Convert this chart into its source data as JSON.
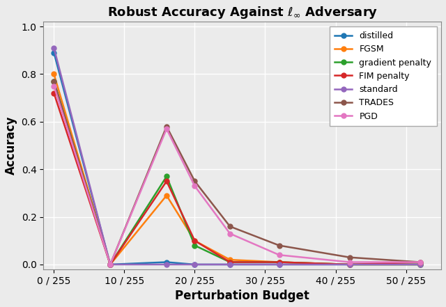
{
  "title": "Robust Accuracy Against $\\ell_\\infty$ Adversary",
  "xlabel": "Perturbation Budget",
  "ylabel": "Accuracy",
  "xlim": [
    -1.5,
    55
  ],
  "ylim": [
    -0.02,
    1.02
  ],
  "series": [
    {
      "label": "distilled",
      "color": "#1f77b4",
      "x": [
        0,
        8,
        16,
        20,
        25,
        32,
        42,
        52
      ],
      "y": [
        0.89,
        0.0,
        0.01,
        0.0,
        0.0,
        0.0,
        0.0,
        0.0
      ]
    },
    {
      "label": "FGSM",
      "color": "#ff7f0e",
      "x": [
        0,
        8,
        16,
        20,
        25,
        32,
        42,
        52
      ],
      "y": [
        0.8,
        0.0,
        0.29,
        0.1,
        0.02,
        0.01,
        0.0,
        0.0
      ]
    },
    {
      "label": "gradient penalty",
      "color": "#2ca02c",
      "x": [
        0,
        8,
        16,
        20,
        25,
        32,
        42,
        52
      ],
      "y": [
        0.77,
        0.0,
        0.37,
        0.08,
        0.01,
        0.01,
        0.0,
        0.0
      ]
    },
    {
      "label": "FIM penalty",
      "color": "#d62728",
      "x": [
        0,
        8,
        16,
        20,
        25,
        32,
        42,
        52
      ],
      "y": [
        0.72,
        0.0,
        0.35,
        0.1,
        0.01,
        0.01,
        0.0,
        0.01
      ]
    },
    {
      "label": "standard",
      "color": "#9467bd",
      "x": [
        0,
        8,
        16,
        20,
        25,
        32,
        42,
        52
      ],
      "y": [
        0.91,
        0.0,
        0.0,
        0.0,
        0.0,
        0.0,
        0.0,
        0.0
      ]
    },
    {
      "label": "TRADES",
      "color": "#8c564b",
      "x": [
        0,
        8,
        16,
        20,
        25,
        32,
        42,
        52
      ],
      "y": [
        0.77,
        0.0,
        0.58,
        0.35,
        0.16,
        0.08,
        0.03,
        0.01
      ]
    },
    {
      "label": "PGD",
      "color": "#e377c2",
      "x": [
        0,
        8,
        16,
        20,
        25,
        32,
        42,
        52
      ],
      "y": [
        0.75,
        0.0,
        0.57,
        0.33,
        0.13,
        0.04,
        0.01,
        0.01
      ]
    }
  ],
  "grid": true,
  "background_color": "#ebebeb",
  "x_major_ticks": [
    0,
    10,
    20,
    30,
    40,
    50
  ],
  "x_major_labels": [
    "0 / 255",
    "10 / 255",
    "20 / 255",
    "30 / 255",
    "40 / 255",
    "50 / 255"
  ],
  "y_ticks": [
    0.0,
    0.2,
    0.4,
    0.6,
    0.8,
    1.0
  ],
  "y_tick_labels": [
    "0.0",
    "0.2",
    "0.4",
    "0.6",
    "0.8",
    "1.0"
  ]
}
